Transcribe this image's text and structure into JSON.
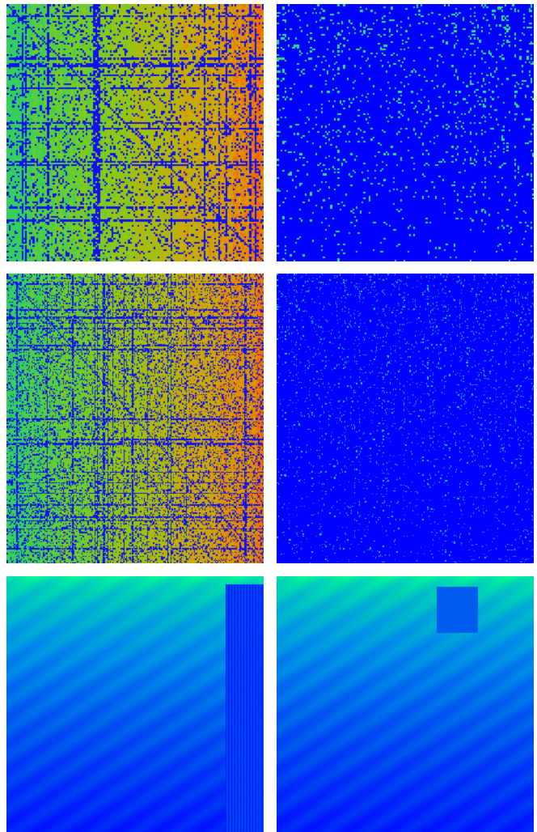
{
  "figure": {
    "panels": [
      {
        "id": "p1",
        "kind": "dense-matrix",
        "cells": 140,
        "palette": [
          "#2fd060",
          "#8ccc10",
          "#d4a800",
          "#ff5a00"
        ],
        "noise_color": "#1010f0",
        "noise_density": 0.16
      },
      {
        "id": "p2",
        "kind": "sparse-matrix",
        "cells": 140,
        "background": "#0000ff",
        "dot_color": "#30e080",
        "dot_density": 0.05
      },
      {
        "id": "p3",
        "kind": "dense-matrix",
        "cells": 220,
        "palette": [
          "#2fd060",
          "#8ccc10",
          "#d4a800",
          "#ff5a00"
        ],
        "noise_color": "#1010f0",
        "noise_density": 0.22
      },
      {
        "id": "p4",
        "kind": "sparse-matrix",
        "cells": 260,
        "background": "#0000ff",
        "dot_color": "#20c0c0",
        "dot_density": 0.03
      },
      {
        "id": "p5",
        "kind": "smooth-field",
        "palette": [
          "#00ff90",
          "#00c8c0",
          "#0090e8",
          "#0050f0",
          "#0010ff"
        ]
      },
      {
        "id": "p6",
        "kind": "smooth-field",
        "palette": [
          "#00ff90",
          "#00c8c0",
          "#0090e8",
          "#0050f0",
          "#0010ff"
        ]
      }
    ]
  }
}
